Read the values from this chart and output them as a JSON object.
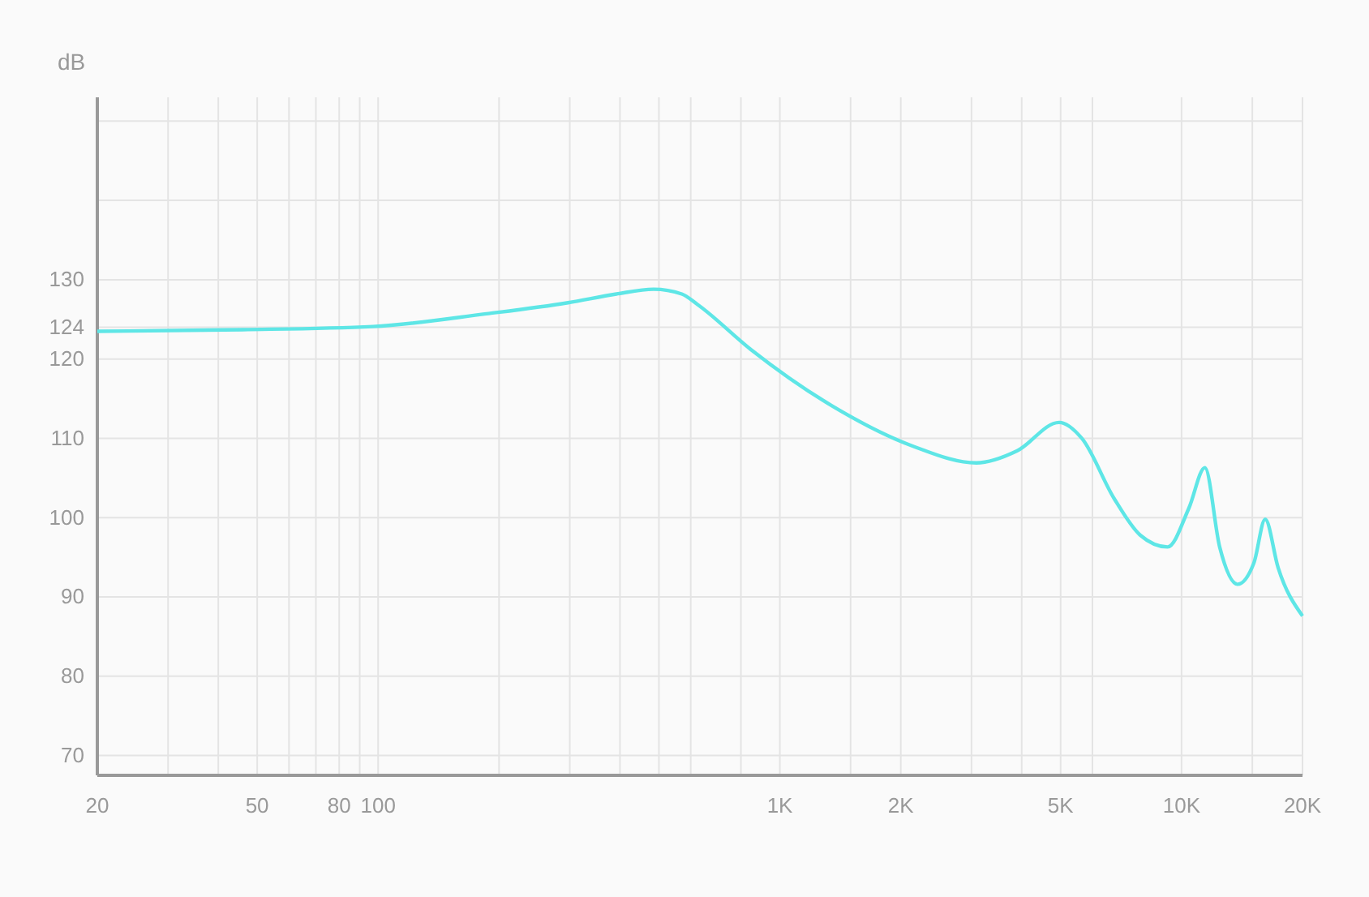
{
  "chart_data": {
    "type": "line",
    "ylabel": "dB",
    "log": "x",
    "grid": true,
    "marker": "none",
    "line_style": "solid",
    "xlim": [
      20,
      20000
    ],
    "ylim": [
      67.5,
      153
    ],
    "xticks": [
      20,
      {
        "value": 30,
        "label": null
      },
      {
        "value": 40,
        "label": null
      },
      50,
      {
        "value": 60,
        "label": null
      },
      {
        "value": 70,
        "label": null
      },
      80,
      {
        "value": 90,
        "label": null
      },
      100,
      {
        "value": 200,
        "label": null
      },
      {
        "value": 300,
        "label": null
      },
      {
        "value": 400,
        "label": null
      },
      {
        "value": 500,
        "label": null
      },
      {
        "value": 600,
        "label": null
      },
      {
        "value": 800,
        "label": null
      },
      {
        "value": 1000,
        "label": "1K"
      },
      {
        "value": 1500,
        "label": null
      },
      {
        "value": 2000,
        "label": "2K"
      },
      {
        "value": 3000,
        "label": null
      },
      {
        "value": 4000,
        "label": null
      },
      {
        "value": 5000,
        "label": "5K"
      },
      {
        "value": 6000,
        "label": null
      },
      {
        "value": 10000,
        "label": "10K"
      },
      {
        "value": 15000,
        "label": null
      },
      {
        "value": 20000,
        "label": "20K"
      }
    ],
    "yticks": [
      70,
      80,
      90,
      100,
      110,
      120,
      124,
      130,
      {
        "value": 140,
        "label": null
      },
      {
        "value": 150,
        "label": null
      }
    ],
    "series": [
      {
        "color": "#5ee6e6",
        "x": [
          20,
          46,
          97,
          186,
          297,
          392,
          485,
          570,
          623,
          847,
          1348,
          2147,
          3084,
          3891,
          4958,
          5645,
          6795,
          7886,
          9231,
          10430,
          11430,
          12440,
          13780,
          15140,
          16150,
          17390,
          20000
        ],
        "values": [
          123.5,
          123.7,
          124.1,
          125.7,
          127.1,
          128.2,
          128.8,
          128.2,
          126.9,
          121.2,
          114.1,
          109,
          106.9,
          108.4,
          112,
          110,
          102.4,
          97.8,
          96.3,
          101.2,
          106.3,
          96.3,
          91.6,
          94.3,
          99.8,
          93.7,
          87.6
        ]
      }
    ]
  }
}
